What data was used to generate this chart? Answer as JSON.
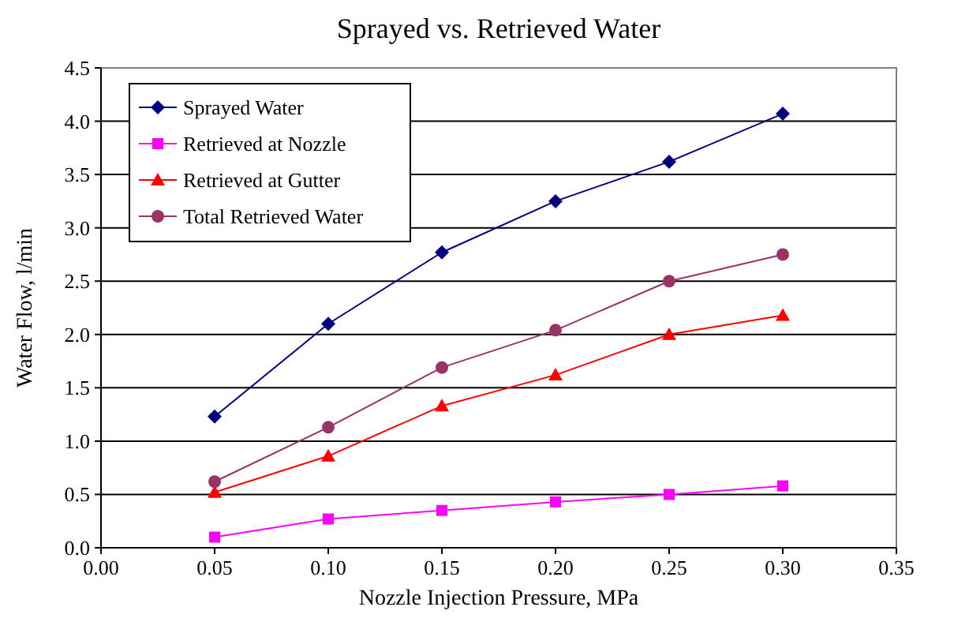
{
  "chart_data": {
    "type": "line",
    "title": "Sprayed vs. Retrieved Water",
    "xlabel": "Nozzle Injection Pressure, MPa",
    "ylabel": "Water Flow, l/min",
    "x": [
      0.05,
      0.1,
      0.15,
      0.2,
      0.25,
      0.3
    ],
    "series": [
      {
        "name": "Sprayed Water",
        "color": "#000080",
        "marker": "diamond",
        "values": [
          1.23,
          2.1,
          2.77,
          3.25,
          3.62,
          4.07
        ]
      },
      {
        "name": "Retrieved at Nozzle",
        "color": "#ff00ff",
        "marker": "square",
        "values": [
          0.1,
          0.27,
          0.35,
          0.43,
          0.5,
          0.58
        ]
      },
      {
        "name": "Retrieved at Gutter",
        "color": "#ff0000",
        "marker": "triangle",
        "values": [
          0.52,
          0.86,
          1.33,
          1.62,
          2.0,
          2.18
        ]
      },
      {
        "name": "Total Retrieved Water",
        "color": "#993366",
        "marker": "circle",
        "values": [
          0.62,
          1.13,
          1.69,
          2.04,
          2.5,
          2.75
        ]
      }
    ],
    "xlim": [
      0,
      0.35
    ],
    "xticks": [
      {
        "value": 0,
        "label": "0.00"
      },
      {
        "value": 0.05,
        "label": "0.05"
      },
      {
        "value": 0.1,
        "label": "0.10"
      },
      {
        "value": 0.15,
        "label": "0.15"
      },
      {
        "value": 0.2,
        "label": "0.20"
      },
      {
        "value": 0.25,
        "label": "0.25"
      },
      {
        "value": 0.3,
        "label": "0.30"
      },
      {
        "value": 0.35,
        "label": "0.35"
      }
    ],
    "ylim": [
      0,
      4.5
    ],
    "yticks": [
      {
        "value": 0,
        "label": "0.0"
      },
      {
        "value": 0.5,
        "label": "0.5"
      },
      {
        "value": 1,
        "label": "1.0"
      },
      {
        "value": 1.5,
        "label": "1.5"
      },
      {
        "value": 2,
        "label": "2.0"
      },
      {
        "value": 2.5,
        "label": "2.5"
      },
      {
        "value": 3,
        "label": "3.0"
      },
      {
        "value": 3.5,
        "label": "3.5"
      },
      {
        "value": 4,
        "label": "4.0"
      },
      {
        "value": 4.5,
        "label": "4.5"
      }
    ],
    "grid": "y",
    "legend": "top left",
    "line_style": "solid"
  }
}
